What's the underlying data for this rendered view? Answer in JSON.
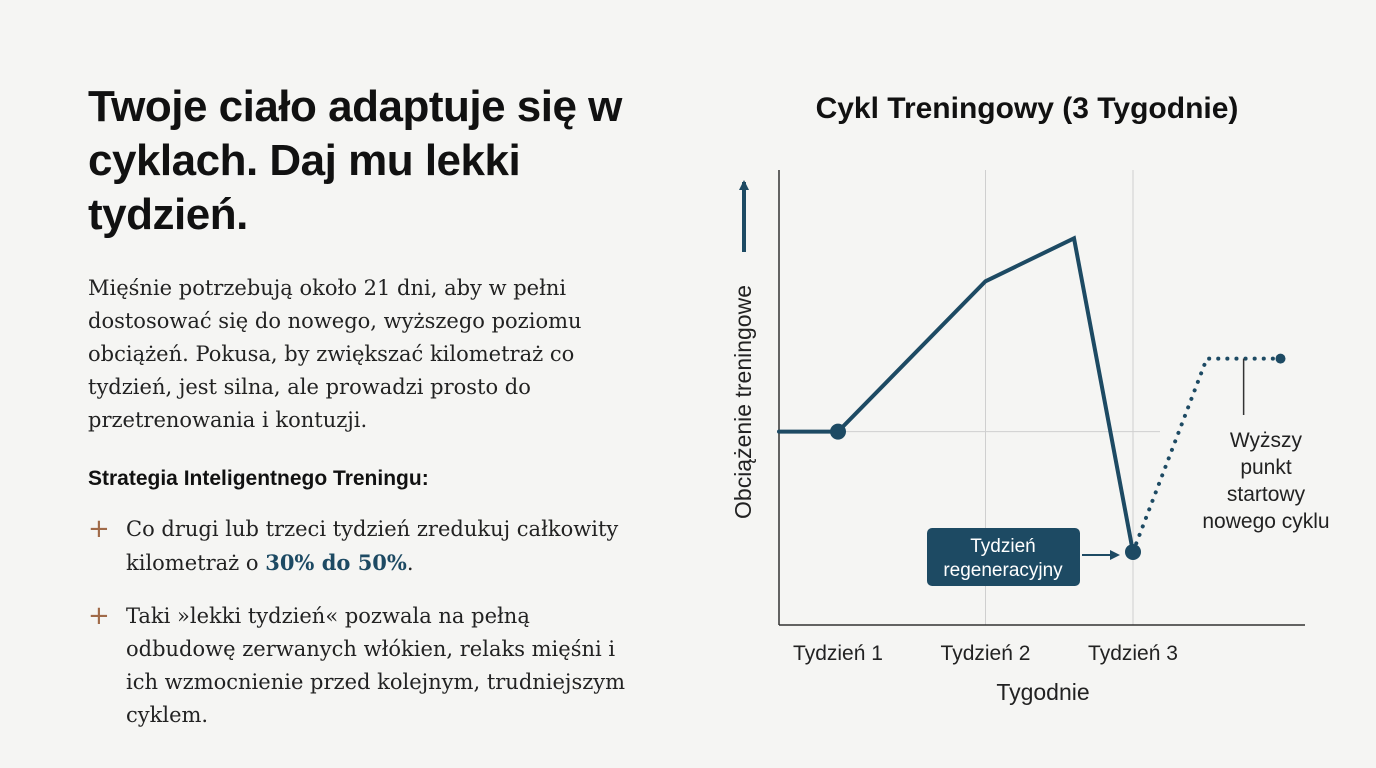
{
  "slide": {
    "headline": "Twoje ciało adaptuje się w cyklach. Daj mu lekki tydzień.",
    "body": "Mięśnie potrzebują około 21 dni, aby w pełni dostosować się do nowego, wyższego poziomu obciążeń. Pokusa, by zwiększać kilometraż co tydzień, jest silna, ale prowadzi prosto do przetrenowania i kontuzji.",
    "strategy_title": "Strategia Inteligentnego Treningu:",
    "bullet_icon": "+",
    "bullets": [
      {
        "text_before": "Co drugi lub trzeci tydzień zredukuj całkowity kilometraż o ",
        "highlight": "30% do 50%",
        "text_after": "."
      },
      {
        "text": "Taki »lekki tydzień« pozwala na pełną odbudowę zerwanych włókien, relaks mięśni i ich wzmocnienie przed kolejnym, trudniejszym cyklem."
      }
    ]
  },
  "chart_data": {
    "type": "line",
    "title": "Cykl Treningowy (3 Tygodnie)",
    "xlabel": "Tygodnie",
    "ylabel": "Obciążenie treningowe",
    "categories": [
      "Tydzień 1",
      "Tydzień 2",
      "Tydzień 3"
    ],
    "grid": true,
    "series": [
      {
        "style": "solid",
        "points": [
          {
            "x": 0.6,
            "y": 45
          },
          {
            "x": 1.0,
            "y": 45
          },
          {
            "x": 2.0,
            "y": 80
          },
          {
            "x": 2.6,
            "y": 90
          },
          {
            "x": 3.0,
            "y": 17
          }
        ],
        "markers_at": [
          1,
          4
        ]
      },
      {
        "style": "dotted",
        "points": [
          {
            "x": 3.0,
            "y": 17
          },
          {
            "x": 3.5,
            "y": 62
          },
          {
            "x": 4.0,
            "y": 62
          }
        ],
        "markers_at": [
          2
        ]
      }
    ],
    "annotations": [
      {
        "text": "Tydzień regeneracyjny",
        "points_to": {
          "x": 3.0,
          "y": 17
        }
      },
      {
        "text": "Wyższy punkt startowy nowego cyklu",
        "points_to": {
          "x": 3.75,
          "y": 62
        }
      }
    ],
    "colors": {
      "line": "#1d4a63",
      "box": "#1d4a63",
      "grid": "#cfcfcf",
      "axis": "#333333"
    }
  }
}
